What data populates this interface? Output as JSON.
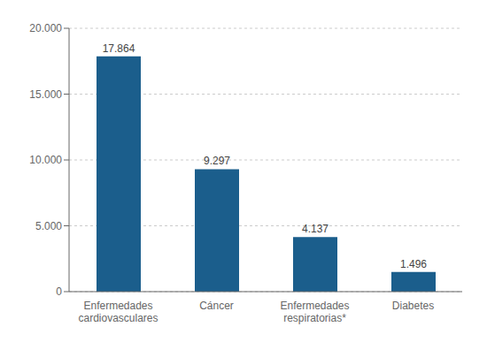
{
  "chart_data": {
    "type": "bar",
    "categories": [
      "Enfermedades\ncardiovasculares",
      "Cáncer",
      "Enfermedades\nrespiratorias*",
      "Diabetes"
    ],
    "values": [
      17864,
      9297,
      4137,
      1496
    ],
    "value_labels": [
      "17.864",
      "9.297",
      "4.137",
      "1.496"
    ],
    "data_labels": true,
    "color": "#1b5e8c",
    "ylim": [
      0,
      20000
    ],
    "yticks": [
      0,
      {
        "value": 5000,
        "label": "5.000"
      },
      {
        "value": 10000,
        "label": "10.000"
      },
      {
        "value": 15000,
        "label": "15.000"
      },
      {
        "value": 20000,
        "label": "20.000"
      }
    ],
    "grid": true
  }
}
